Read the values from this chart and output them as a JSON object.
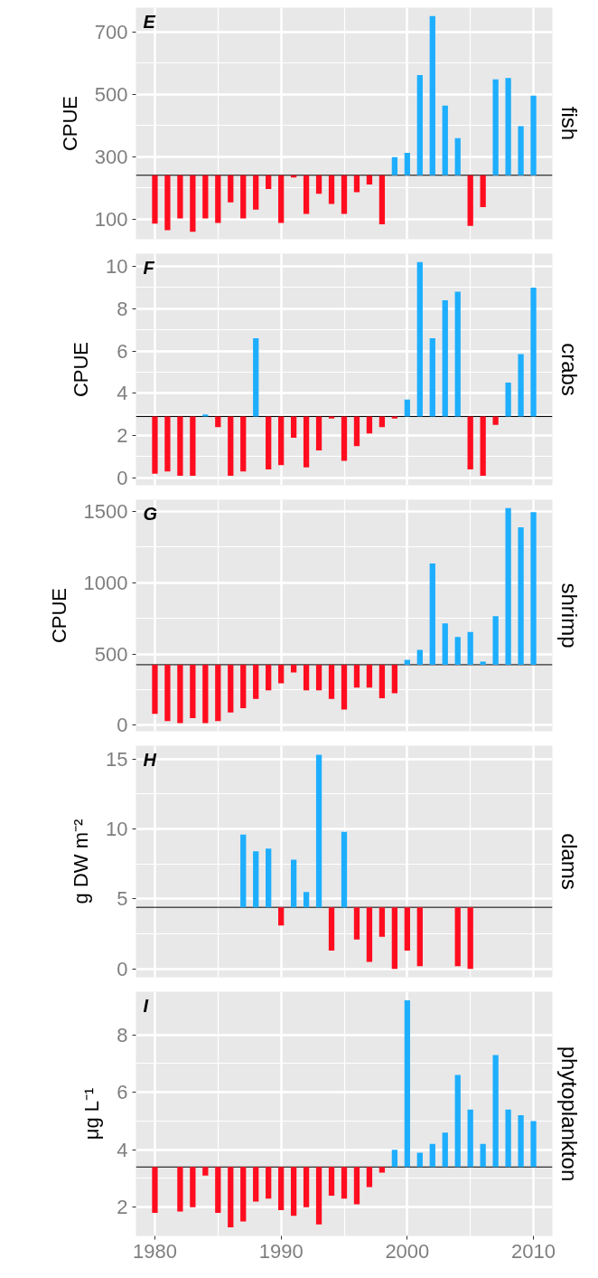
{
  "chart_data": [
    {
      "type": "bar",
      "title": "fish",
      "ylabel": "CPUE",
      "annotations": [
        "E"
      ],
      "grid": true,
      "tick_labels": "y",
      "x": [
        1980,
        1981,
        1982,
        1983,
        1984,
        1985,
        1986,
        1987,
        1988,
        1989,
        1990,
        1991,
        1992,
        1993,
        1994,
        1995,
        1996,
        1997,
        1998,
        1999,
        2000,
        2001,
        2002,
        2003,
        2004,
        2005,
        2006,
        2007,
        2008,
        2009,
        2010
      ],
      "base": [
        240,
        240,
        240,
        240,
        240,
        240,
        240,
        240,
        240,
        240,
        240,
        240,
        240,
        240,
        240,
        240,
        240,
        240,
        240,
        240,
        240,
        240,
        240,
        240,
        240,
        240,
        240,
        240,
        240,
        240,
        240
      ],
      "values": [
        -155,
        -176,
        -138,
        -181,
        -138,
        -153,
        -87,
        -138,
        -110,
        -44,
        -153,
        -7,
        -124,
        -59,
        -92,
        -124,
        -54,
        -30,
        -157,
        58,
        72,
        321,
        510,
        223,
        119,
        -162,
        -102,
        307,
        312,
        157,
        255
      ],
      "colors": [
        "#ff0d1f",
        "#ff0d1f",
        "#ff0d1f",
        "#ff0d1f",
        "#ff0d1f",
        "#ff0d1f",
        "#ff0d1f",
        "#ff0d1f",
        "#ff0d1f",
        "#ff0d1f",
        "#ff0d1f",
        "#ff0d1f",
        "#ff0d1f",
        "#ff0d1f",
        "#ff0d1f",
        "#ff0d1f",
        "#ff0d1f",
        "#ff0d1f",
        "#ff0d1f",
        "#1eaefe",
        "#1eaefe",
        "#1eaefe",
        "#1eaefe",
        "#1eaefe",
        "#1eaefe",
        "#ff0d1f",
        "#ff0d1f",
        "#1eaefe",
        "#1eaefe",
        "#1eaefe",
        "#1eaefe"
      ],
      "ref_lines": [
        {
          "axis": "y",
          "value": 240,
          "color": "#000000"
        }
      ],
      "xlim": [
        1978.5,
        2011.5
      ],
      "xticks": [
        1980,
        1990,
        2000,
        2010
      ],
      "ylim": [
        35,
        777
      ],
      "yticks": [
        100,
        300,
        500,
        700
      ]
    },
    {
      "type": "bar",
      "title": "crabs",
      "ylabel": "CPUE",
      "annotations": [
        "F"
      ],
      "grid": true,
      "tick_labels": "y",
      "x": [
        1980,
        1981,
        1982,
        1983,
        1984,
        1985,
        1986,
        1987,
        1988,
        1989,
        1990,
        1991,
        1992,
        1993,
        1994,
        1995,
        1996,
        1997,
        1998,
        1999,
        2000,
        2001,
        2002,
        2003,
        2004,
        2005,
        2006,
        2007,
        2008,
        2009,
        2010
      ],
      "base": [
        2.9,
        2.9,
        2.9,
        2.9,
        2.9,
        2.9,
        2.9,
        2.9,
        2.9,
        2.9,
        2.9,
        2.9,
        2.9,
        2.9,
        2.9,
        2.9,
        2.9,
        2.9,
        2.9,
        2.9,
        2.9,
        2.9,
        2.9,
        2.9,
        2.9,
        2.9,
        2.9,
        2.9,
        2.9,
        2.9,
        2.9
      ],
      "values": [
        -2.7,
        -2.6,
        -2.8,
        -2.8,
        0.1,
        -0.5,
        -2.8,
        -2.6,
        3.7,
        -2.5,
        -2.3,
        -1.0,
        -2.4,
        -1.6,
        -0.1,
        -2.1,
        -1.4,
        -0.8,
        -0.5,
        -0.1,
        0.8,
        7.3,
        3.7,
        5.5,
        5.9,
        -2.5,
        -2.8,
        -0.4,
        1.6,
        2.95,
        6.1
      ],
      "colors": [
        "#ff0d1f",
        "#ff0d1f",
        "#ff0d1f",
        "#ff0d1f",
        "#1eaefe",
        "#ff0d1f",
        "#ff0d1f",
        "#ff0d1f",
        "#1eaefe",
        "#ff0d1f",
        "#ff0d1f",
        "#ff0d1f",
        "#ff0d1f",
        "#ff0d1f",
        "#ff0d1f",
        "#ff0d1f",
        "#ff0d1f",
        "#ff0d1f",
        "#ff0d1f",
        "#ff0d1f",
        "#1eaefe",
        "#1eaefe",
        "#1eaefe",
        "#1eaefe",
        "#1eaefe",
        "#ff0d1f",
        "#ff0d1f",
        "#ff0d1f",
        "#1eaefe",
        "#1eaefe",
        "#1eaefe"
      ],
      "ref_lines": [
        {
          "axis": "y",
          "value": 2.9,
          "color": "#000000"
        }
      ],
      "xlim": [
        1978.5,
        2011.5
      ],
      "xticks": [
        1980,
        1990,
        2000,
        2010
      ],
      "ylim": [
        -0.35,
        10.6
      ],
      "yticks": [
        0,
        2,
        4,
        6,
        8,
        10
      ]
    },
    {
      "type": "bar",
      "title": "shrimp",
      "ylabel": "CPUE",
      "annotations": [
        "G"
      ],
      "grid": true,
      "tick_labels": "y",
      "x": [
        1980,
        1981,
        1982,
        1983,
        1984,
        1985,
        1986,
        1987,
        1988,
        1989,
        1990,
        1991,
        1992,
        1993,
        1994,
        1995,
        1996,
        1997,
        1998,
        1999,
        2000,
        2001,
        2002,
        2003,
        2004,
        2005,
        2006,
        2007,
        2008,
        2009,
        2010
      ],
      "base": [
        425,
        425,
        425,
        425,
        425,
        425,
        425,
        425,
        425,
        425,
        425,
        425,
        425,
        425,
        425,
        425,
        425,
        425,
        425,
        425,
        425,
        425,
        425,
        425,
        425,
        425,
        425,
        425,
        425,
        425,
        425
      ],
      "values": [
        -345,
        -395,
        -410,
        -375,
        -410,
        -395,
        -335,
        -305,
        -240,
        -180,
        -130,
        -55,
        -180,
        -180,
        -240,
        -315,
        -160,
        -160,
        -235,
        -200,
        35,
        105,
        710,
        290,
        195,
        230,
        22,
        340,
        1100,
        965,
        1070
      ],
      "colors": [
        "#ff0d1f",
        "#ff0d1f",
        "#ff0d1f",
        "#ff0d1f",
        "#ff0d1f",
        "#ff0d1f",
        "#ff0d1f",
        "#ff0d1f",
        "#ff0d1f",
        "#ff0d1f",
        "#ff0d1f",
        "#ff0d1f",
        "#ff0d1f",
        "#ff0d1f",
        "#ff0d1f",
        "#ff0d1f",
        "#ff0d1f",
        "#ff0d1f",
        "#ff0d1f",
        "#ff0d1f",
        "#1eaefe",
        "#1eaefe",
        "#1eaefe",
        "#1eaefe",
        "#1eaefe",
        "#1eaefe",
        "#1eaefe",
        "#1eaefe",
        "#1eaefe",
        "#1eaefe",
        "#1eaefe"
      ],
      "ref_lines": [
        {
          "axis": "y",
          "value": 425,
          "color": "#000000"
        }
      ],
      "xlim": [
        1978.5,
        2011.5
      ],
      "xticks": [
        1980,
        1990,
        2000,
        2010
      ],
      "ylim": [
        -42,
        1583
      ],
      "yticks": [
        0,
        500,
        1000,
        1500
      ]
    },
    {
      "type": "bar",
      "title": "clams",
      "ylabel": "g DW m⁻²",
      "annotations": [
        "H"
      ],
      "grid": true,
      "tick_labels": "y",
      "x": [
        1987,
        1988,
        1989,
        1990,
        1991,
        1992,
        1993,
        1994,
        1995,
        1996,
        1997,
        1998,
        1999,
        2000,
        2001,
        2002,
        2003,
        2004,
        2005
      ],
      "base": [
        4.4,
        4.4,
        4.4,
        4.4,
        4.4,
        4.4,
        4.4,
        4.4,
        4.4,
        4.4,
        4.4,
        4.4,
        4.4,
        4.4,
        4.4,
        null,
        null,
        4.4,
        4.4
      ],
      "values": [
        5.2,
        4.0,
        4.2,
        -1.3,
        3.4,
        1.1,
        10.9,
        -3.1,
        5.4,
        -2.3,
        -3.9,
        -2.1,
        -4.4,
        -3.1,
        -4.2,
        null,
        null,
        -4.2,
        -4.4
      ],
      "colors": [
        "#1eaefe",
        "#1eaefe",
        "#1eaefe",
        "#ff0d1f",
        "#1eaefe",
        "#1eaefe",
        "#1eaefe",
        "#ff0d1f",
        "#1eaefe",
        "#ff0d1f",
        "#ff0d1f",
        "#ff0d1f",
        "#ff0d1f",
        "#ff0d1f",
        "#ff0d1f",
        null,
        null,
        "#ff0d1f",
        "#ff0d1f"
      ],
      "ref_lines": [
        {
          "axis": "y",
          "value": 4.4,
          "color": "#000000"
        }
      ],
      "xlim": [
        1978.5,
        2011.5
      ],
      "xticks": [
        1980,
        1990,
        2000,
        2010
      ],
      "ylim": [
        -0.6,
        15.95
      ],
      "yticks": [
        0,
        5,
        10,
        15
      ]
    },
    {
      "type": "bar",
      "title": "phytoplankton",
      "ylabel": "μg L⁻¹",
      "annotations": [
        "I"
      ],
      "grid": true,
      "x": [
        1980,
        1981,
        1982,
        1983,
        1984,
        1985,
        1986,
        1987,
        1988,
        1989,
        1990,
        1991,
        1992,
        1993,
        1994,
        1995,
        1996,
        1997,
        1998,
        1999,
        2000,
        2001,
        2002,
        2003,
        2004,
        2005,
        2006,
        2007,
        2008,
        2009,
        2010
      ],
      "base": [
        3.4,
        null,
        3.4,
        3.4,
        3.4,
        3.4,
        3.4,
        3.4,
        3.4,
        3.4,
        3.4,
        3.4,
        3.4,
        3.4,
        3.4,
        3.4,
        3.4,
        3.4,
        3.4,
        3.4,
        3.4,
        3.4,
        3.4,
        3.4,
        3.4,
        3.4,
        3.4,
        3.4,
        3.4,
        3.4,
        3.4
      ],
      "values": [
        -1.6,
        null,
        -1.55,
        -1.4,
        -0.3,
        -1.6,
        -2.1,
        -1.9,
        -1.2,
        -1.1,
        -1.5,
        -1.7,
        -1.4,
        -2.0,
        -1.0,
        -1.1,
        -1.3,
        -0.7,
        -0.2,
        0.6,
        5.8,
        0.5,
        0.8,
        1.2,
        3.2,
        2.0,
        0.8,
        3.9,
        2.0,
        1.8,
        1.6
      ],
      "colors": [
        "#ff0d1f",
        null,
        "#ff0d1f",
        "#ff0d1f",
        "#ff0d1f",
        "#ff0d1f",
        "#ff0d1f",
        "#ff0d1f",
        "#ff0d1f",
        "#ff0d1f",
        "#ff0d1f",
        "#ff0d1f",
        "#ff0d1f",
        "#ff0d1f",
        "#ff0d1f",
        "#ff0d1f",
        "#ff0d1f",
        "#ff0d1f",
        "#ff0d1f",
        "#1eaefe",
        "#1eaefe",
        "#1eaefe",
        "#1eaefe",
        "#1eaefe",
        "#1eaefe",
        "#1eaefe",
        "#1eaefe",
        "#1eaefe",
        "#1eaefe",
        "#1eaefe",
        "#1eaefe"
      ],
      "ref_lines": [
        {
          "axis": "y",
          "value": 3.4,
          "color": "#000000"
        }
      ],
      "xlim": [
        1978.5,
        2011.5
      ],
      "xticks": [
        1980,
        1990,
        2000,
        2010
      ],
      "ylim": [
        1.0,
        9.5
      ],
      "yticks": [
        2,
        4,
        6,
        8
      ]
    }
  ]
}
